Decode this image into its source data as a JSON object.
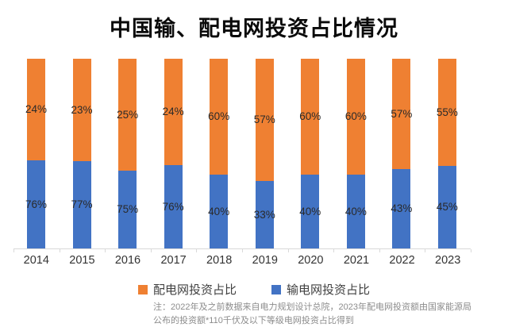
{
  "title": "中国输、配电网投资占比情况",
  "chart_data": {
    "type": "bar",
    "stacked": true,
    "title": "中国输、配电网投资占比情况",
    "categories": [
      "2014",
      "2015",
      "2016",
      "2017",
      "2018",
      "2019",
      "2020",
      "2021",
      "2022",
      "2023"
    ],
    "series": [
      {
        "name": "配电网投资占比",
        "color": "#EF8032",
        "unit": "%",
        "values": [
          24,
          23,
          25,
          24,
          60,
          57,
          60,
          60,
          57,
          55
        ]
      },
      {
        "name": "输电网投资占比",
        "color": "#4273C4",
        "unit": "%",
        "values": [
          76,
          77,
          75,
          76,
          40,
          33,
          40,
          40,
          43,
          45
        ]
      }
    ],
    "data_labels_shown": true,
    "legend_position": "bottom",
    "grid": false,
    "axis_line_color": "#d9d9d9",
    "visual_blue_height_fraction": [
      0.465,
      0.459,
      0.41,
      0.438,
      0.389,
      0.355,
      0.389,
      0.388,
      0.418,
      0.435
    ]
  },
  "footnote": {
    "line1": "注：2022年及之前数据来自电力规划设计总院，2023年配电网投资额由国家能源局",
    "line2": "公布的投资额*110千伏及以下等级电网投资占比得到"
  }
}
